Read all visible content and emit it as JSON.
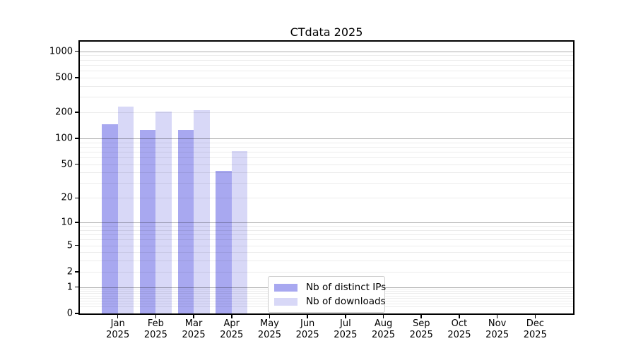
{
  "chart_data": {
    "type": "bar",
    "title": "CTdata 2025",
    "categories": [
      "Jan 2025",
      "Feb 2025",
      "Mar 2025",
      "Apr 2025",
      "May 2025",
      "Jun 2025",
      "Jul 2025",
      "Aug 2025",
      "Sep 2025",
      "Oct 2025",
      "Nov 2025",
      "Dec 2025"
    ],
    "series": [
      {
        "name": "Nb of distinct IPs",
        "color": "#a8a8f0",
        "values": [
          145,
          125,
          125,
          42,
          0,
          0,
          0,
          0,
          0,
          0,
          0,
          0
        ]
      },
      {
        "name": "Nb of downloads",
        "color": "#d8d8f7",
        "values": [
          232,
          205,
          212,
          71,
          0,
          0,
          0,
          0,
          0,
          0,
          0,
          0
        ]
      }
    ],
    "xlabel": "",
    "ylabel": "",
    "y_ticks": [
      0,
      1,
      2,
      5,
      10,
      20,
      50,
      100,
      200,
      500,
      1000
    ],
    "y_scale": "log10(1+y)",
    "ylim": [
      0,
      1290
    ],
    "grid": "horizontal major+minor, drawn above bars",
    "legend_position": "lower center inside plot"
  },
  "colors": {
    "major_grid": "#adadad",
    "minor_grid": "#ebebeb",
    "spine": "#000000",
    "background": "#ffffff"
  }
}
